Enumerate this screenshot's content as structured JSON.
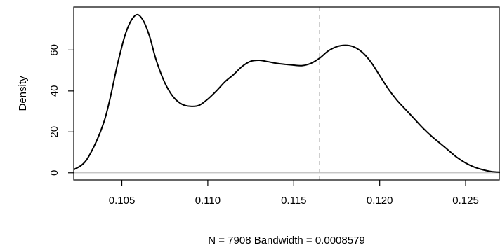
{
  "chart_data": {
    "type": "line",
    "title": "",
    "xlabel": "N = 7908   Bandwidth = 0.0008579",
    "ylabel": "Density",
    "xlim": [
      0.1022,
      0.127
    ],
    "ylim": [
      -3.5,
      81
    ],
    "x_ticks": [
      0.105,
      0.11,
      0.115,
      0.12,
      0.125
    ],
    "x_tick_labels": [
      "0.105",
      "0.110",
      "0.115",
      "0.120",
      "0.125"
    ],
    "y_ticks": [
      0,
      20,
      40,
      60
    ],
    "y_tick_labels": [
      "0",
      "20",
      "40",
      "60"
    ],
    "grid": false,
    "baseline": {
      "y": 0,
      "color": "#bebebe"
    },
    "reference_line": {
      "x": 0.1165,
      "style": "dashed",
      "color": "#bebebe"
    },
    "series": [
      {
        "color": "#000000",
        "x": [
          0.1022,
          0.103,
          0.104,
          0.1048,
          0.1053,
          0.1058,
          0.1062,
          0.1066,
          0.107,
          0.1075,
          0.108,
          0.1085,
          0.109,
          0.1095,
          0.11,
          0.1105,
          0.111,
          0.1115,
          0.112,
          0.1125,
          0.113,
          0.1135,
          0.114,
          0.1145,
          0.115,
          0.1155,
          0.116,
          0.1165,
          0.117,
          0.1175,
          0.118,
          0.1185,
          0.119,
          0.1195,
          0.12,
          0.1205,
          0.121,
          0.1215,
          0.122,
          0.1225,
          0.123,
          0.1235,
          0.124,
          0.1245,
          0.125,
          0.1255,
          0.126,
          0.1265,
          0.127
        ],
        "y": [
          1.5,
          7,
          26,
          55,
          70,
          77,
          75,
          67,
          55,
          44,
          37,
          33.5,
          32.5,
          33,
          36,
          40,
          44.5,
          48,
          52,
          54.5,
          55,
          54.3,
          53.5,
          53,
          52.6,
          52.4,
          53.5,
          56,
          59.5,
          61.6,
          62.3,
          61.5,
          58.8,
          54,
          47.5,
          41,
          35.5,
          31,
          26.5,
          22,
          18,
          14.5,
          11,
          7.5,
          4.8,
          2.8,
          1.5,
          0.6,
          0.3
        ]
      }
    ]
  }
}
